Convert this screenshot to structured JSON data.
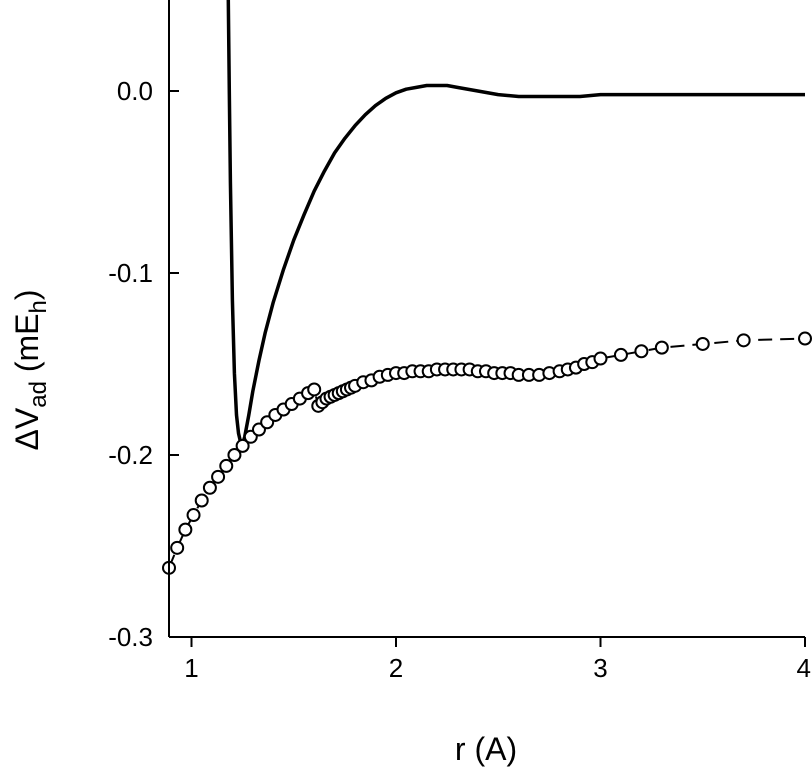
{
  "chart_data": {
    "type": "line",
    "xlabel": "r (A)",
    "ylabel": {
      "delta": "Δ",
      "V": "V",
      "sub1": "ad",
      "unit_prefix": " (mE",
      "sub2": "h",
      "unit_suffix": ")"
    },
    "xlim": [
      0.89,
      4.0
    ],
    "ylim": [
      -0.3,
      0.05
    ],
    "x_ticks": [
      1,
      2,
      3,
      4
    ],
    "x_tick_labels": [
      "1",
      "2",
      "3",
      "4"
    ],
    "y_ticks": [
      0.0,
      -0.1,
      -0.2,
      -0.3
    ],
    "y_tick_labels": [
      "0.0",
      "-0.1",
      "-0.2",
      "-0.3"
    ],
    "grid": false,
    "series": [
      {
        "style": "solid",
        "color": "#000000",
        "x": [
          1.18,
          1.185,
          1.19,
          1.2,
          1.21,
          1.22,
          1.23,
          1.24,
          1.25,
          1.26,
          1.28,
          1.3,
          1.33,
          1.36,
          1.4,
          1.45,
          1.5,
          1.55,
          1.6,
          1.65,
          1.7,
          1.75,
          1.8,
          1.85,
          1.9,
          1.95,
          2.0,
          2.05,
          2.1,
          2.15,
          2.2,
          2.25,
          2.3,
          2.4,
          2.5,
          2.6,
          2.7,
          2.8,
          2.9,
          3.0,
          3.2,
          3.4,
          3.6,
          3.8,
          4.0
        ],
        "y": [
          0.05,
          0.0,
          -0.05,
          -0.115,
          -0.155,
          -0.178,
          -0.188,
          -0.193,
          -0.194,
          -0.19,
          -0.178,
          -0.165,
          -0.148,
          -0.133,
          -0.116,
          -0.098,
          -0.082,
          -0.068,
          -0.055,
          -0.044,
          -0.034,
          -0.026,
          -0.019,
          -0.013,
          -0.008,
          -0.004,
          -0.001,
          0.001,
          0.002,
          0.003,
          0.003,
          0.003,
          0.002,
          0.0,
          -0.002,
          -0.003,
          -0.003,
          -0.003,
          -0.003,
          -0.002,
          -0.002,
          -0.002,
          -0.002,
          -0.002,
          -0.002
        ]
      },
      {
        "style": "dashed",
        "marker": "open-circle",
        "color": "#000000",
        "x": [
          0.89,
          0.93,
          0.97,
          1.01,
          1.05,
          1.09,
          1.13,
          1.17,
          1.21,
          1.25,
          1.29,
          1.33,
          1.37,
          1.41,
          1.45,
          1.49,
          1.53,
          1.57,
          1.6,
          1.62,
          1.64,
          1.66,
          1.68,
          1.7,
          1.72,
          1.74,
          1.76,
          1.78,
          1.8,
          1.84,
          1.88,
          1.92,
          1.96,
          2.0,
          2.04,
          2.08,
          2.12,
          2.16,
          2.2,
          2.24,
          2.28,
          2.32,
          2.36,
          2.4,
          2.44,
          2.48,
          2.52,
          2.56,
          2.6,
          2.65,
          2.7,
          2.75,
          2.8,
          2.84,
          2.88,
          2.92,
          2.96,
          3.0,
          3.1,
          3.2,
          3.3,
          3.5,
          3.7,
          4.0
        ],
        "y": [
          -0.262,
          -0.251,
          -0.241,
          -0.233,
          -0.225,
          -0.218,
          -0.212,
          -0.206,
          -0.2,
          -0.195,
          -0.19,
          -0.186,
          -0.182,
          -0.178,
          -0.175,
          -0.172,
          -0.169,
          -0.166,
          -0.164,
          -0.173,
          -0.171,
          -0.169,
          -0.168,
          -0.167,
          -0.166,
          -0.165,
          -0.164,
          -0.163,
          -0.162,
          -0.16,
          -0.159,
          -0.157,
          -0.156,
          -0.155,
          -0.155,
          -0.154,
          -0.154,
          -0.154,
          -0.153,
          -0.153,
          -0.153,
          -0.153,
          -0.153,
          -0.154,
          -0.154,
          -0.155,
          -0.155,
          -0.155,
          -0.156,
          -0.156,
          -0.156,
          -0.155,
          -0.154,
          -0.153,
          -0.152,
          -0.15,
          -0.149,
          -0.147,
          -0.145,
          -0.143,
          -0.141,
          -0.139,
          -0.137,
          -0.136
        ]
      }
    ]
  }
}
